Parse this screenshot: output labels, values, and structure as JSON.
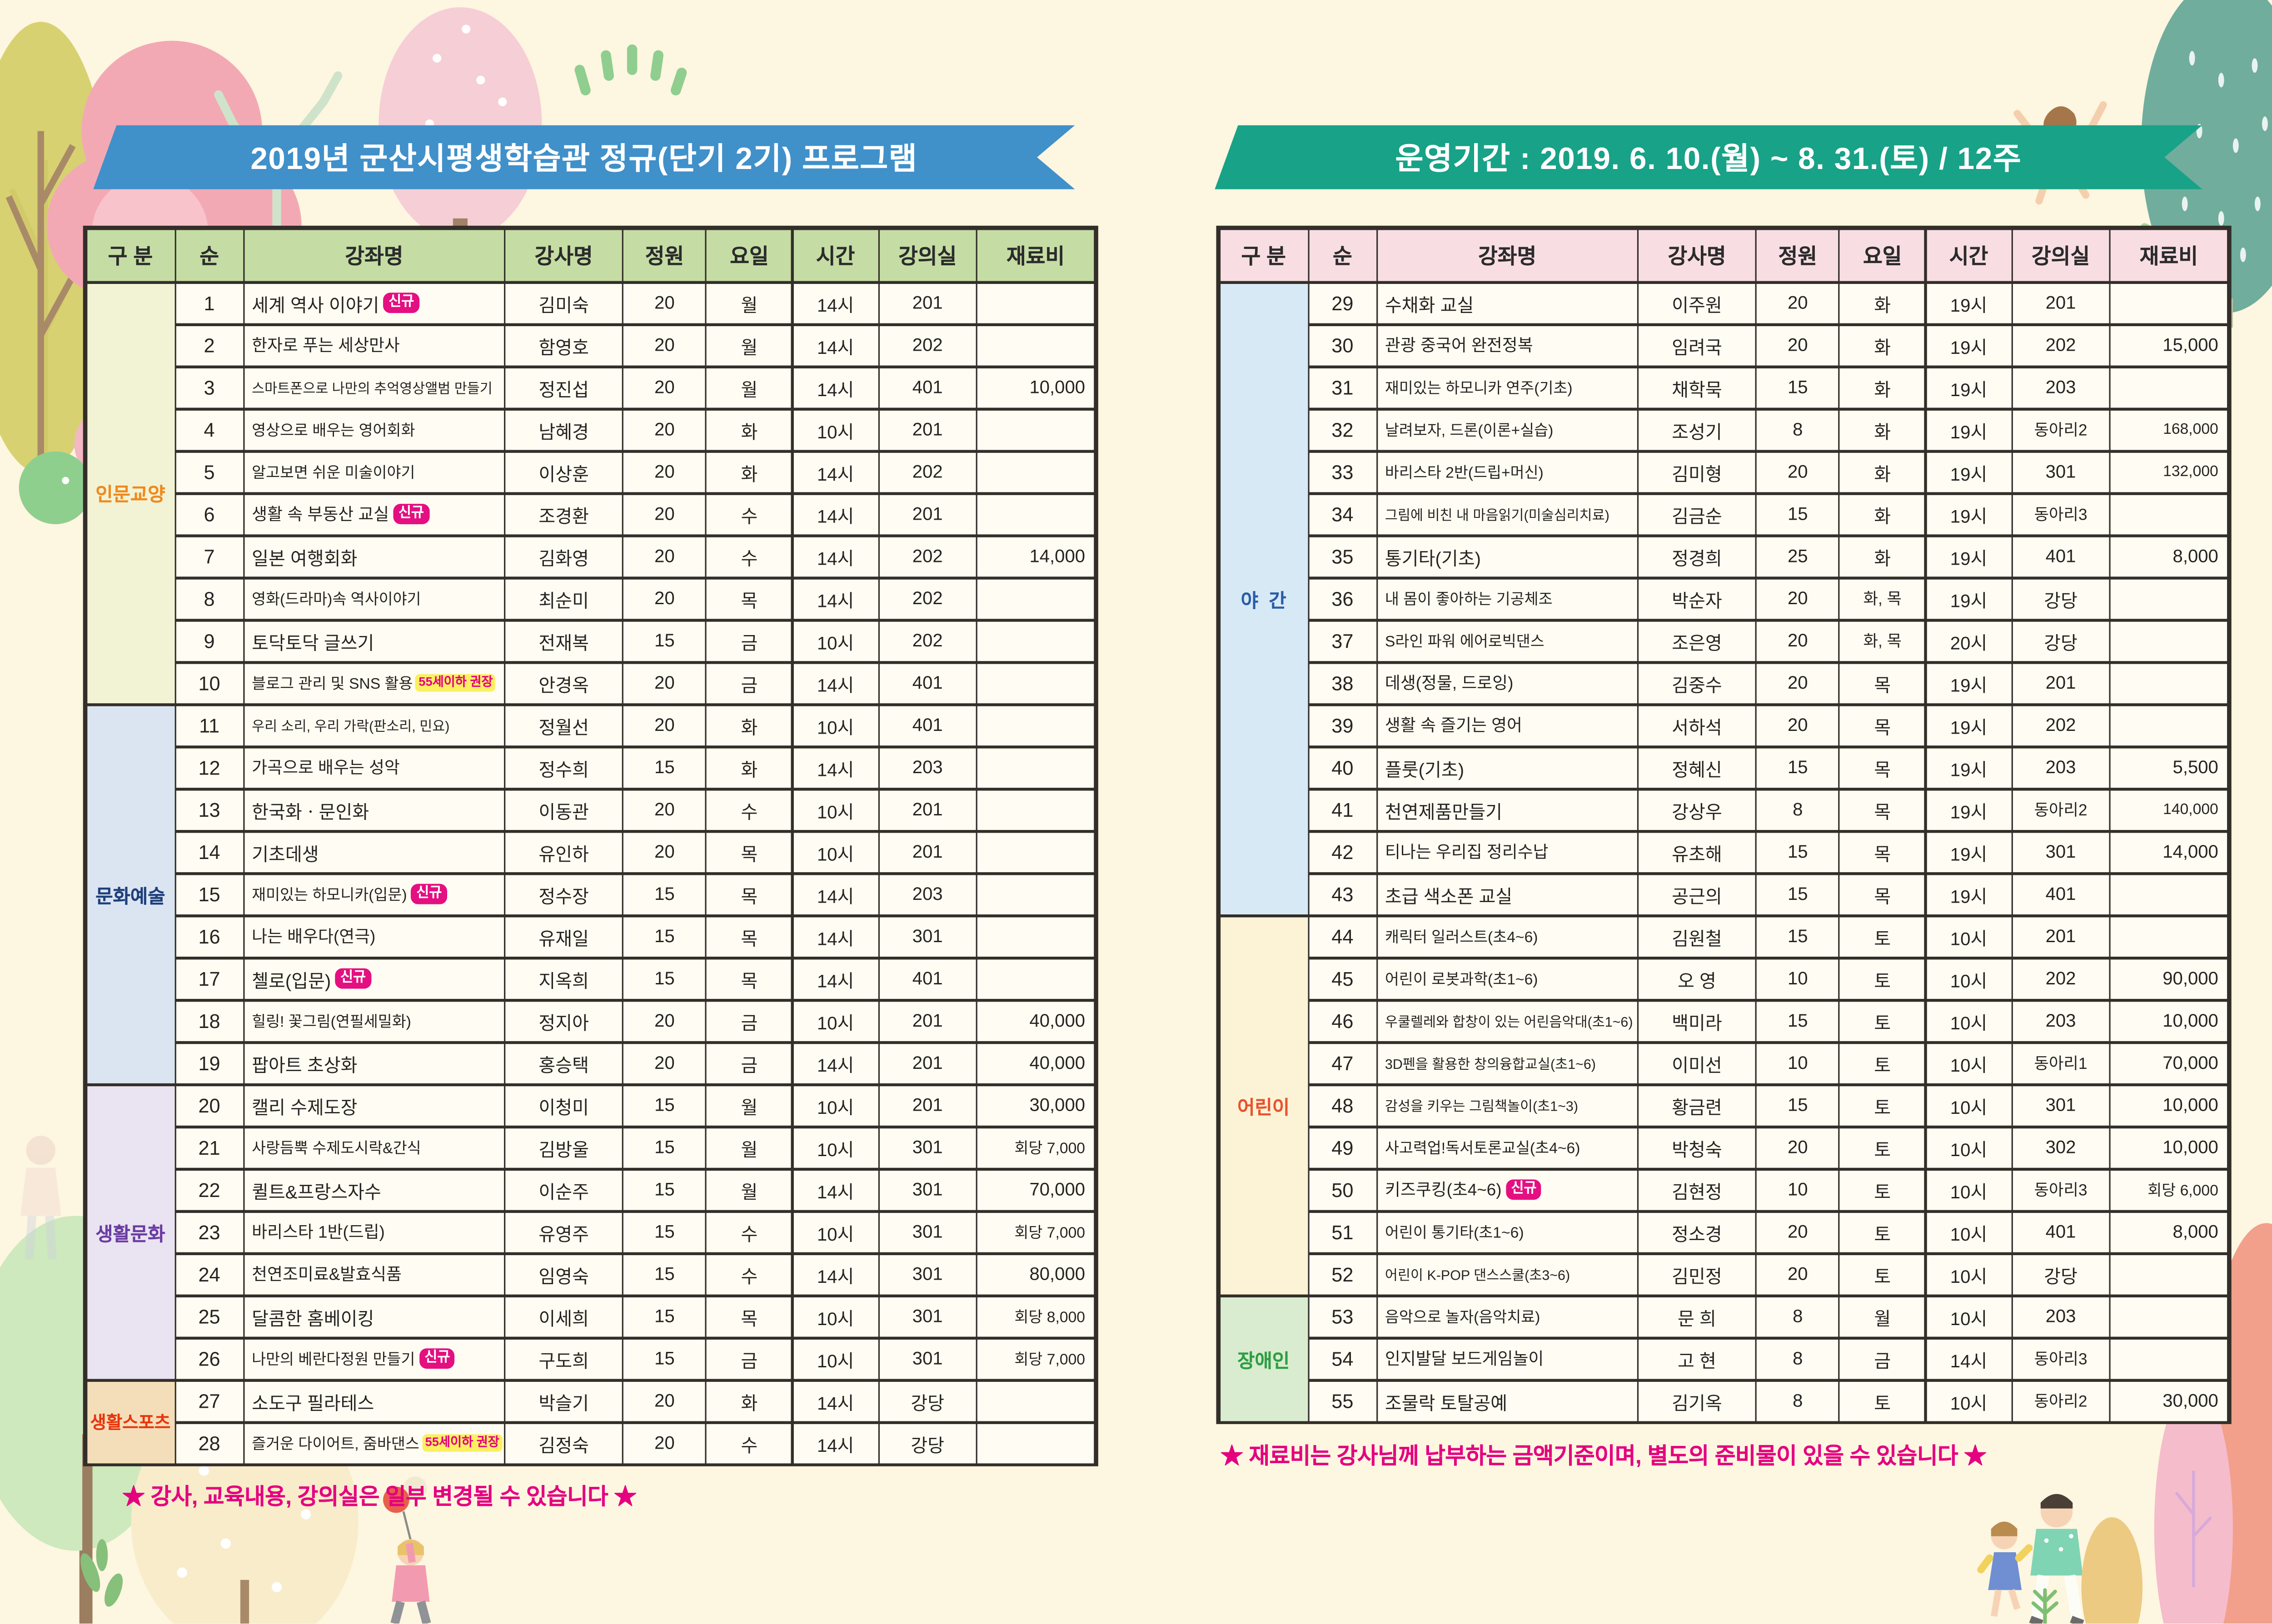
{
  "colors": {
    "page_bg": "#fdf6e0",
    "banner_blue": "#4090ca",
    "banner_green": "#18a287",
    "header_green": "#c5dda4",
    "header_pink": "#f8dee3",
    "grid_line": "#332e29",
    "note_pink": "#e4007f",
    "badge_new_bg": "#e40f81",
    "badge_age_bg": "#fbef62"
  },
  "columns": [
    "구 분",
    "순",
    "강좌명",
    "강사명",
    "정원",
    "요일",
    "시간",
    "강의실",
    "재료비"
  ],
  "left": {
    "title": "2019년 군산시평생학습관 정규(단기 2기) 프로그램",
    "note": "★ 강사, 교육내용, 강의실은 일부 변경될 수 있습니다 ★",
    "groups": [
      {
        "label": "인문교양",
        "start": 1,
        "end": 10,
        "bg": "#f2f3d5",
        "fg": "#ef8a1d"
      },
      {
        "label": "문화예술",
        "start": 11,
        "end": 19,
        "bg": "#dbe5f1",
        "fg": "#1f3f7d"
      },
      {
        "label": "생활문화",
        "start": 20,
        "end": 26,
        "bg": "#eae3f1",
        "fg": "#6a3da2"
      },
      {
        "label": "생활스포츠",
        "start": 27,
        "end": 28,
        "bg": "#f4deba",
        "fg": "#e8370d"
      }
    ],
    "rows": [
      {
        "n": 1,
        "name": "세계 역사 이야기",
        "badge": "신규",
        "bt": "new",
        "t": "김미숙",
        "cap": "20",
        "day": "월",
        "time": "14시",
        "room": "201",
        "fee": ""
      },
      {
        "n": 2,
        "name": "한자로 푸는 세상만사",
        "t": "함영호",
        "cap": "20",
        "day": "월",
        "time": "14시",
        "room": "202",
        "fee": ""
      },
      {
        "n": 3,
        "name": "스마트폰으로 나만의 추억영상앨범 만들기",
        "t": "정진섭",
        "cap": "20",
        "day": "월",
        "time": "14시",
        "room": "401",
        "fee": "10,000"
      },
      {
        "n": 4,
        "name": "영상으로 배우는 영어회화",
        "t": "남혜경",
        "cap": "20",
        "day": "화",
        "time": "10시",
        "room": "201",
        "fee": ""
      },
      {
        "n": 5,
        "name": "알고보면 쉬운 미술이야기",
        "t": "이상훈",
        "cap": "20",
        "day": "화",
        "time": "14시",
        "room": "202",
        "fee": ""
      },
      {
        "n": 6,
        "name": "생활 속 부동산 교실",
        "badge": "신규",
        "bt": "new",
        "t": "조경환",
        "cap": "20",
        "day": "수",
        "time": "14시",
        "room": "201",
        "fee": ""
      },
      {
        "n": 7,
        "name": "일본 여행회화",
        "t": "김화영",
        "cap": "20",
        "day": "수",
        "time": "14시",
        "room": "202",
        "fee": "14,000"
      },
      {
        "n": 8,
        "name": "영화(드라마)속 역사이야기",
        "t": "최순미",
        "cap": "20",
        "day": "목",
        "time": "14시",
        "room": "202",
        "fee": ""
      },
      {
        "n": 9,
        "name": "토닥토닥 글쓰기",
        "t": "전재복",
        "cap": "15",
        "day": "금",
        "time": "10시",
        "room": "202",
        "fee": ""
      },
      {
        "n": 10,
        "name": "블로그 관리 및 SNS 활용",
        "badge": "55세이하 권장",
        "bt": "age",
        "t": "안경옥",
        "cap": "20",
        "day": "금",
        "time": "14시",
        "room": "401",
        "fee": ""
      },
      {
        "n": 11,
        "name": "우리 소리, 우리 가락(판소리, 민요)",
        "t": "정월선",
        "cap": "20",
        "day": "화",
        "time": "10시",
        "room": "401",
        "fee": ""
      },
      {
        "n": 12,
        "name": "가곡으로 배우는 성악",
        "t": "정수희",
        "cap": "15",
        "day": "화",
        "time": "14시",
        "room": "203",
        "fee": ""
      },
      {
        "n": 13,
        "name": "한국화ㆍ문인화",
        "t": "이동관",
        "cap": "20",
        "day": "수",
        "time": "10시",
        "room": "201",
        "fee": ""
      },
      {
        "n": 14,
        "name": "기초데생",
        "t": "유인하",
        "cap": "20",
        "day": "목",
        "time": "10시",
        "room": "201",
        "fee": ""
      },
      {
        "n": 15,
        "name": "재미있는 하모니카(입문)",
        "badge": "신규",
        "bt": "new",
        "t": "정수장",
        "cap": "15",
        "day": "목",
        "time": "14시",
        "room": "203",
        "fee": ""
      },
      {
        "n": 16,
        "name": "나는 배우다(연극)",
        "t": "유재일",
        "cap": "15",
        "day": "목",
        "time": "14시",
        "room": "301",
        "fee": ""
      },
      {
        "n": 17,
        "name": "첼로(입문)",
        "badge": "신규",
        "bt": "new",
        "t": "지옥희",
        "cap": "15",
        "day": "목",
        "time": "14시",
        "room": "401",
        "fee": ""
      },
      {
        "n": 18,
        "name": "힐링! 꽃그림(연필세밀화)",
        "t": "정지아",
        "cap": "20",
        "day": "금",
        "time": "10시",
        "room": "201",
        "fee": "40,000"
      },
      {
        "n": 19,
        "name": "팝아트 초상화",
        "t": "홍승택",
        "cap": "20",
        "day": "금",
        "time": "14시",
        "room": "201",
        "fee": "40,000"
      },
      {
        "n": 20,
        "name": "캘리 수제도장",
        "t": "이청미",
        "cap": "15",
        "day": "월",
        "time": "10시",
        "room": "201",
        "fee": "30,000"
      },
      {
        "n": 21,
        "name": "사랑듬뿍 수제도시락&간식",
        "t": "김방울",
        "cap": "15",
        "day": "월",
        "time": "10시",
        "room": "301",
        "fee": "회당 7,000"
      },
      {
        "n": 22,
        "name": "퀼트&프랑스자수",
        "t": "이순주",
        "cap": "15",
        "day": "월",
        "time": "14시",
        "room": "301",
        "fee": "70,000"
      },
      {
        "n": 23,
        "name": "바리스타 1반(드립)",
        "t": "유영주",
        "cap": "15",
        "day": "수",
        "time": "10시",
        "room": "301",
        "fee": "회당 7,000"
      },
      {
        "n": 24,
        "name": "천연조미료&발효식품",
        "t": "임영숙",
        "cap": "15",
        "day": "수",
        "time": "14시",
        "room": "301",
        "fee": "80,000"
      },
      {
        "n": 25,
        "name": "달콤한 홈베이킹",
        "t": "이세희",
        "cap": "15",
        "day": "목",
        "time": "10시",
        "room": "301",
        "fee": "회당 8,000"
      },
      {
        "n": 26,
        "name": "나만의 베란다정원 만들기",
        "badge": "신규",
        "bt": "new",
        "t": "구도희",
        "cap": "15",
        "day": "금",
        "time": "10시",
        "room": "301",
        "fee": "회당 7,000"
      },
      {
        "n": 27,
        "name": "소도구 필라테스",
        "t": "박슬기",
        "cap": "20",
        "day": "화",
        "time": "14시",
        "room": "강당",
        "fee": ""
      },
      {
        "n": 28,
        "name": "즐거운 다이어트, 줌바댄스",
        "badge": "55세이하 권장",
        "bt": "age",
        "t": "김정숙",
        "cap": "20",
        "day": "수",
        "time": "14시",
        "room": "강당",
        "fee": ""
      }
    ]
  },
  "right": {
    "title": "운영기간 : 2019. 6. 10.(월) ~ 8. 31.(토) / 12주",
    "note": "★ 재료비는 강사님께 납부하는 금액기준이며, 별도의 준비물이 있을 수 있습니다 ★",
    "groups": [
      {
        "label": "야  간",
        "start": 29,
        "end": 43,
        "bg": "#d8e9f6",
        "fg": "#2a5ca8"
      },
      {
        "label": "어린이",
        "start": 44,
        "end": 52,
        "bg": "#fcf3d6",
        "fg": "#e85330"
      },
      {
        "label": "장애인",
        "start": 53,
        "end": 55,
        "bg": "#d9eccf",
        "fg": "#2f9e44"
      }
    ],
    "rows": [
      {
        "n": 29,
        "name": "수채화 교실",
        "t": "이주원",
        "cap": "20",
        "day": "화",
        "time": "19시",
        "room": "201",
        "fee": ""
      },
      {
        "n": 30,
        "name": "관광 중국어 완전정복",
        "t": "임려국",
        "cap": "20",
        "day": "화",
        "time": "19시",
        "room": "202",
        "fee": "15,000"
      },
      {
        "n": 31,
        "name": "재미있는 하모니카 연주(기초)",
        "t": "채학묵",
        "cap": "15",
        "day": "화",
        "time": "19시",
        "room": "203",
        "fee": ""
      },
      {
        "n": 32,
        "name": "날려보자, 드론(이론+실습)",
        "t": "조성기",
        "cap": "8",
        "day": "화",
        "time": "19시",
        "room": "동아리2",
        "fee": "168,000"
      },
      {
        "n": 33,
        "name": "바리스타 2반(드립+머신)",
        "t": "김미형",
        "cap": "20",
        "day": "화",
        "time": "19시",
        "room": "301",
        "fee": "132,000"
      },
      {
        "n": 34,
        "name": "그림에 비친 내 마음읽기(미술심리치료)",
        "t": "김금순",
        "cap": "15",
        "day": "화",
        "time": "19시",
        "room": "동아리3",
        "fee": ""
      },
      {
        "n": 35,
        "name": "통기타(기초)",
        "t": "정경희",
        "cap": "25",
        "day": "화",
        "time": "19시",
        "room": "401",
        "fee": "8,000"
      },
      {
        "n": 36,
        "name": "내 몸이 좋아하는 기공체조",
        "t": "박순자",
        "cap": "20",
        "day": "화, 목",
        "time": "19시",
        "room": "강당",
        "fee": ""
      },
      {
        "n": 37,
        "name": "S라인 파워 에어로빅댄스",
        "t": "조은영",
        "cap": "20",
        "day": "화, 목",
        "time": "20시",
        "room": "강당",
        "fee": ""
      },
      {
        "n": 38,
        "name": "데생(정물, 드로잉)",
        "t": "김중수",
        "cap": "20",
        "day": "목",
        "time": "19시",
        "room": "201",
        "fee": ""
      },
      {
        "n": 39,
        "name": "생활 속 즐기는 영어",
        "t": "서하석",
        "cap": "20",
        "day": "목",
        "time": "19시",
        "room": "202",
        "fee": ""
      },
      {
        "n": 40,
        "name": "플룻(기초)",
        "t": "정혜신",
        "cap": "15",
        "day": "목",
        "time": "19시",
        "room": "203",
        "fee": "5,500"
      },
      {
        "n": 41,
        "name": "천연제품만들기",
        "t": "강상우",
        "cap": "8",
        "day": "목",
        "time": "19시",
        "room": "동아리2",
        "fee": "140,000"
      },
      {
        "n": 42,
        "name": "티나는 우리집 정리수납",
        "t": "유초해",
        "cap": "15",
        "day": "목",
        "time": "19시",
        "room": "301",
        "fee": "14,000"
      },
      {
        "n": 43,
        "name": "초급 색소폰 교실",
        "t": "공근의",
        "cap": "15",
        "day": "목",
        "time": "19시",
        "room": "401",
        "fee": ""
      },
      {
        "n": 44,
        "name": "캐릭터 일러스트(초4~6)",
        "t": "김원철",
        "cap": "15",
        "day": "토",
        "time": "10시",
        "room": "201",
        "fee": ""
      },
      {
        "n": 45,
        "name": "어린이 로봇과학(초1~6)",
        "t": "오  영",
        "cap": "10",
        "day": "토",
        "time": "10시",
        "room": "202",
        "fee": "90,000"
      },
      {
        "n": 46,
        "name": "우쿨렐레와 합창이 있는 어린음악대(초1~6)",
        "t": "백미라",
        "cap": "15",
        "day": "토",
        "time": "10시",
        "room": "203",
        "fee": "10,000"
      },
      {
        "n": 47,
        "name": "3D펜을 활용한 창의융합교실(초1~6)",
        "t": "이미선",
        "cap": "10",
        "day": "토",
        "time": "10시",
        "room": "동아리1",
        "fee": "70,000"
      },
      {
        "n": 48,
        "name": "감성을 키우는 그림책놀이(초1~3)",
        "t": "황금련",
        "cap": "15",
        "day": "토",
        "time": "10시",
        "room": "301",
        "fee": "10,000"
      },
      {
        "n": 49,
        "name": "사고력업!독서토론교실(초4~6)",
        "t": "박청숙",
        "cap": "20",
        "day": "토",
        "time": "10시",
        "room": "302",
        "fee": "10,000"
      },
      {
        "n": 50,
        "name": "키즈쿠킹(초4~6)",
        "badge": "신규",
        "bt": "new",
        "t": "김현정",
        "cap": "10",
        "day": "토",
        "time": "10시",
        "room": "동아리3",
        "fee": "회당 6,000"
      },
      {
        "n": 51,
        "name": "어린이 통기타(초1~6)",
        "t": "정소경",
        "cap": "20",
        "day": "토",
        "time": "10시",
        "room": "401",
        "fee": "8,000"
      },
      {
        "n": 52,
        "name": "어린이 K-POP 댄스스쿨(초3~6)",
        "t": "김민정",
        "cap": "20",
        "day": "토",
        "time": "10시",
        "room": "강당",
        "fee": ""
      },
      {
        "n": 53,
        "name": "음악으로 놀자(음악치료)",
        "t": "문  희",
        "cap": "8",
        "day": "월",
        "time": "10시",
        "room": "203",
        "fee": ""
      },
      {
        "n": 54,
        "name": "인지발달 보드게임놀이",
        "t": "고  현",
        "cap": "8",
        "day": "금",
        "time": "14시",
        "room": "동아리3",
        "fee": ""
      },
      {
        "n": 55,
        "name": "조물락 토탈공예",
        "t": "김기옥",
        "cap": "8",
        "day": "토",
        "time": "10시",
        "room": "동아리2",
        "fee": "30,000"
      }
    ]
  }
}
